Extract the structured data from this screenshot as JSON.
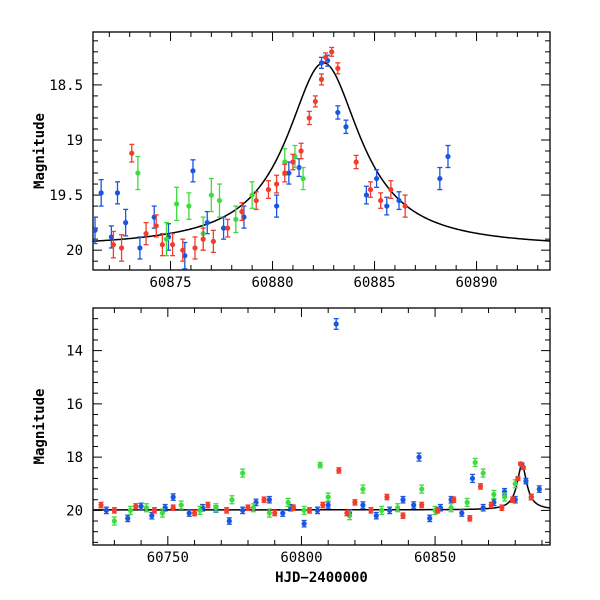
{
  "chart_data": [
    {
      "type": "scatter",
      "panel": "top",
      "title": "",
      "xlabel": "",
      "ylabel": "Magnitude",
      "xlim": [
        60871.2,
        60893.6
      ],
      "ylim": [
        20.18,
        18.02
      ],
      "y_inverted": true,
      "grid": false,
      "xticks": [
        60875,
        60880,
        60885,
        60890
      ],
      "xtick_labels": [
        "60875",
        "60880",
        "60885",
        "60890"
      ],
      "yticks": [
        18.5,
        19,
        19.5,
        20
      ],
      "ytick_labels": [
        "18.5",
        "19",
        "19.5",
        "20"
      ],
      "colors": {
        "blue": "#1a56e0",
        "green": "#3fdc3f",
        "red": "#f23c2c",
        "model": "#000000"
      },
      "model_curve": {
        "name": "",
        "t0": 60882.5,
        "peak_mag": 18.3,
        "baseline_mag": 19.98,
        "tE": 2.2
      },
      "series": [
        {
          "color_key": "blue",
          "x": [
            60871.3,
            60871.6,
            60872.1,
            60872.4,
            60872.8,
            60873.5,
            60874.2,
            60874.9,
            60875.7,
            60876.1,
            60876.8,
            60877.6,
            60878.6,
            60880.2,
            60880.8,
            60881.3,
            60882.4,
            60882.7,
            60883.2,
            60883.6,
            60884.6,
            60885.1,
            60885.6,
            60886.2,
            60888.2,
            60888.6
          ],
          "y": [
            19.82,
            19.48,
            19.88,
            19.48,
            19.75,
            19.98,
            19.7,
            19.88,
            20.05,
            19.28,
            19.75,
            19.8,
            19.7,
            19.6,
            19.3,
            19.25,
            18.3,
            18.28,
            18.75,
            18.88,
            19.5,
            19.35,
            19.6,
            19.55,
            19.35,
            19.15
          ],
          "err": [
            0.12,
            0.12,
            0.1,
            0.1,
            0.12,
            0.1,
            0.1,
            0.12,
            0.12,
            0.1,
            0.1,
            0.1,
            0.1,
            0.1,
            0.1,
            0.08,
            0.05,
            0.05,
            0.06,
            0.06,
            0.08,
            0.08,
            0.08,
            0.08,
            0.1,
            0.1
          ]
        },
        {
          "color_key": "green",
          "x": [
            60873.4,
            60874.8,
            60875.3,
            60875.9,
            60876.6,
            60877.0,
            60877.4,
            60878.2,
            60879.0,
            60880.6,
            60881.1,
            60881.5
          ],
          "y": [
            19.3,
            19.9,
            19.58,
            19.6,
            19.85,
            19.5,
            19.55,
            19.72,
            19.5,
            19.2,
            19.15,
            19.35
          ],
          "err": [
            0.15,
            0.15,
            0.15,
            0.12,
            0.15,
            0.15,
            0.15,
            0.12,
            0.12,
            0.12,
            0.1,
            0.1
          ]
        },
        {
          "color_key": "red",
          "x": [
            60872.2,
            60872.6,
            60873.1,
            60873.8,
            60874.3,
            60874.6,
            60875.1,
            60875.6,
            60876.2,
            60876.6,
            60877.1,
            60877.8,
            60878.5,
            60879.2,
            60879.8,
            60880.2,
            60880.6,
            60881.0,
            60881.4,
            60881.8,
            60882.1,
            60882.4,
            60882.6,
            60882.9,
            60883.2,
            60884.1,
            60884.8,
            60885.3,
            60885.8,
            60886.5
          ],
          "y": [
            19.95,
            19.98,
            19.12,
            19.85,
            19.78,
            19.95,
            19.95,
            20.0,
            19.98,
            19.9,
            19.92,
            19.8,
            19.65,
            19.55,
            19.45,
            19.4,
            19.3,
            19.2,
            19.1,
            18.8,
            18.65,
            18.45,
            18.25,
            18.2,
            18.35,
            19.2,
            19.45,
            19.55,
            19.45,
            19.6
          ],
          "err": [
            0.12,
            0.12,
            0.08,
            0.1,
            0.1,
            0.1,
            0.1,
            0.1,
            0.1,
            0.1,
            0.1,
            0.08,
            0.08,
            0.08,
            0.08,
            0.08,
            0.08,
            0.07,
            0.07,
            0.06,
            0.05,
            0.05,
            0.04,
            0.04,
            0.05,
            0.06,
            0.07,
            0.07,
            0.08,
            0.1
          ]
        }
      ]
    },
    {
      "type": "scatter",
      "panel": "bottom",
      "title": "",
      "xlabel": "HJD−2400000",
      "ylabel": "Magnitude",
      "xlim": [
        60722,
        60893
      ],
      "ylim": [
        21.3,
        12.4
      ],
      "y_inverted": true,
      "grid": false,
      "xticks": [
        60750,
        60800,
        60850
      ],
      "xtick_labels": [
        "60750",
        "60800",
        "60850"
      ],
      "yticks": [
        14,
        16,
        18,
        20
      ],
      "ytick_labels": [
        "14",
        "16",
        "18",
        "20"
      ],
      "colors": {
        "blue": "#1a56e0",
        "green": "#3fdc3f",
        "red": "#f23c2c",
        "model": "#000000"
      },
      "model_curve": {
        "name": "",
        "t0": 60882.5,
        "peak_mag": 18.3,
        "baseline_mag": 19.98,
        "tE": 2.2
      },
      "series": [
        {
          "color_key": "blue",
          "x": [
            60727,
            60735,
            60740,
            60744,
            60749,
            60752,
            60758,
            60763,
            60768,
            60773,
            60778,
            60783,
            60788,
            60793,
            60796,
            60801,
            60806,
            60810,
            60813,
            60818,
            60823,
            60828,
            60833,
            60838,
            60842,
            60844,
            60848,
            60852,
            60856,
            60860,
            60864,
            60868,
            60872,
            60876,
            60880,
            60882.5,
            60884,
            60886,
            60889
          ],
          "y": [
            20.0,
            20.3,
            19.85,
            20.2,
            19.9,
            19.5,
            20.1,
            19.9,
            19.95,
            20.4,
            20.0,
            19.7,
            19.6,
            20.1,
            19.9,
            20.5,
            20.0,
            19.8,
            13.0,
            20.1,
            19.8,
            20.2,
            20.0,
            19.6,
            19.8,
            18.0,
            20.3,
            19.9,
            19.6,
            20.1,
            18.8,
            19.9,
            19.7,
            19.3,
            19.6,
            18.3,
            18.9,
            19.5,
            19.2
          ],
          "err": [
            0.12,
            0.12,
            0.12,
            0.12,
            0.12,
            0.12,
            0.12,
            0.12,
            0.12,
            0.12,
            0.12,
            0.12,
            0.12,
            0.12,
            0.12,
            0.12,
            0.12,
            0.12,
            0.2,
            0.12,
            0.12,
            0.12,
            0.12,
            0.12,
            0.12,
            0.15,
            0.12,
            0.12,
            0.12,
            0.12,
            0.15,
            0.12,
            0.12,
            0.12,
            0.12,
            0.08,
            0.1,
            0.1,
            0.12
          ]
        },
        {
          "color_key": "green",
          "x": [
            60730,
            60736,
            60742,
            60748,
            60755,
            60762,
            60768,
            60774,
            60778,
            60782,
            60788,
            60795,
            60801,
            60807,
            60810,
            60818,
            60823,
            60830,
            60836,
            60845,
            60850,
            60856,
            60862,
            60865,
            60868,
            60872,
            60876,
            60880
          ],
          "y": [
            20.4,
            20.0,
            19.9,
            20.1,
            19.8,
            20.0,
            19.9,
            19.6,
            18.6,
            19.9,
            20.1,
            19.7,
            20.0,
            18.3,
            19.5,
            20.2,
            19.2,
            20.0,
            19.9,
            19.2,
            20.0,
            19.9,
            19.7,
            18.2,
            18.6,
            19.4,
            19.5,
            19.0
          ],
          "err": [
            0.15,
            0.15,
            0.15,
            0.15,
            0.15,
            0.15,
            0.15,
            0.15,
            0.15,
            0.15,
            0.15,
            0.15,
            0.15,
            0.1,
            0.15,
            0.15,
            0.15,
            0.15,
            0.15,
            0.15,
            0.15,
            0.15,
            0.15,
            0.15,
            0.15,
            0.15,
            0.15,
            0.15
          ]
        },
        {
          "color_key": "red",
          "x": [
            60725,
            60730,
            60738,
            60745,
            60752,
            60760,
            60765,
            60772,
            60780,
            60786,
            60790,
            60797,
            60803,
            60808,
            60814,
            60817,
            60820,
            60826,
            60832,
            60838,
            60845,
            60851,
            60857,
            60863,
            60867,
            60871,
            60875,
            60879,
            60881,
            60882,
            60883,
            60886
          ],
          "y": [
            19.8,
            20.0,
            19.85,
            20.0,
            19.9,
            20.1,
            19.8,
            20.0,
            19.9,
            19.6,
            20.1,
            19.9,
            20.0,
            19.8,
            18.5,
            20.1,
            19.7,
            20.0,
            19.5,
            20.2,
            19.8,
            20.0,
            19.6,
            20.3,
            19.1,
            19.8,
            19.9,
            19.6,
            18.8,
            18.25,
            18.4,
            19.5
          ],
          "err": [
            0.1,
            0.1,
            0.1,
            0.1,
            0.1,
            0.1,
            0.1,
            0.1,
            0.1,
            0.1,
            0.1,
            0.1,
            0.1,
            0.1,
            0.1,
            0.1,
            0.1,
            0.1,
            0.1,
            0.1,
            0.1,
            0.1,
            0.1,
            0.1,
            0.1,
            0.1,
            0.1,
            0.1,
            0.07,
            0.05,
            0.06,
            0.1
          ]
        }
      ]
    }
  ]
}
